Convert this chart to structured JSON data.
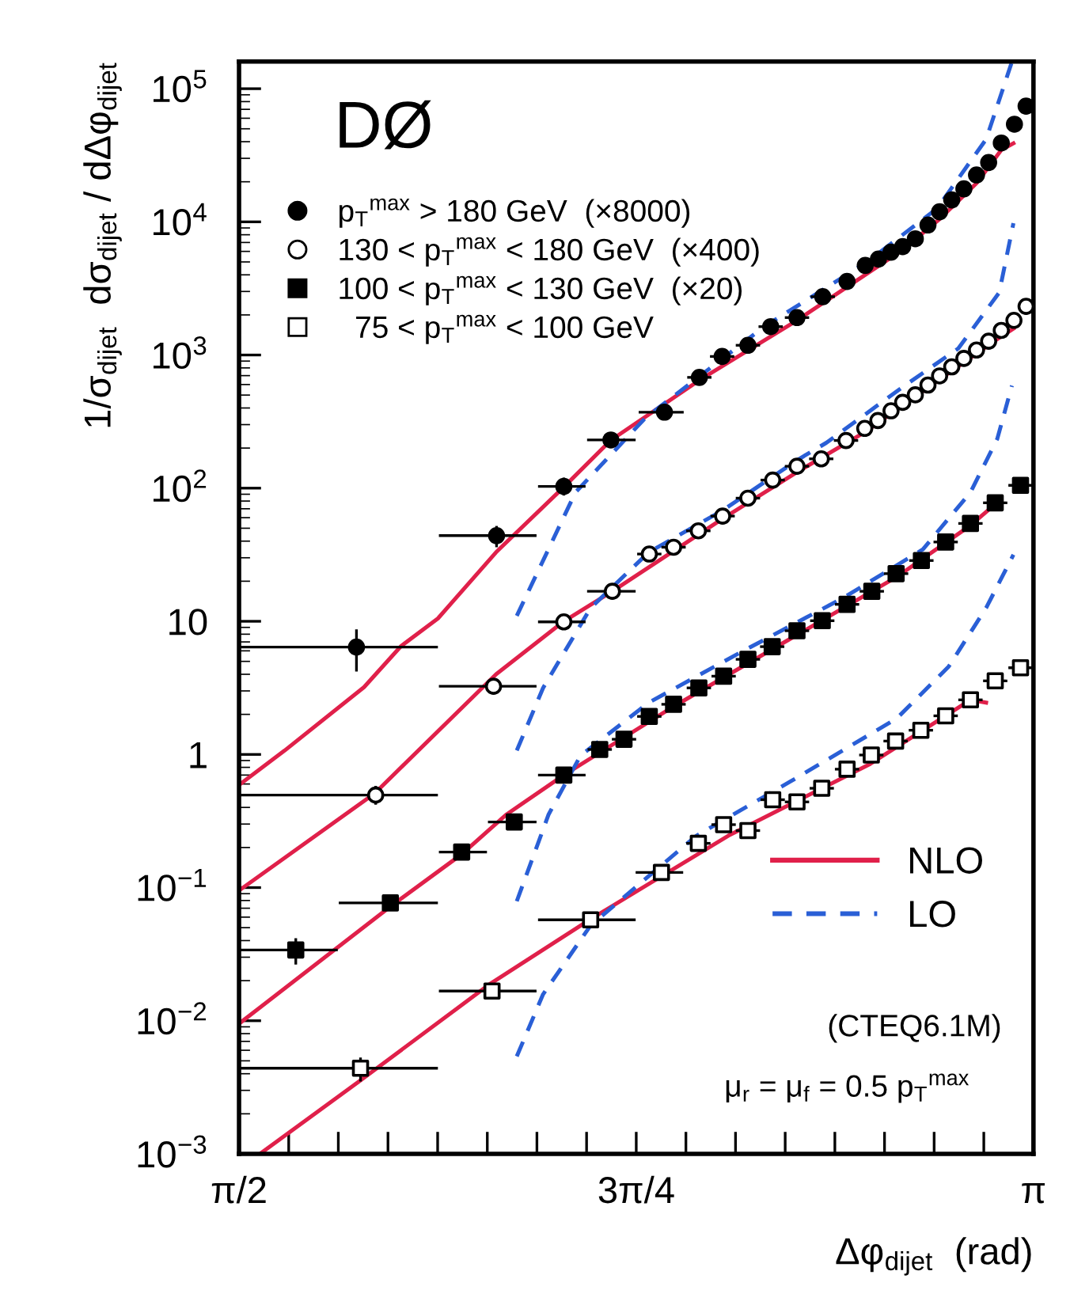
{
  "chart_data": {
    "type": "scatter",
    "xlabel": "Δφ$_{dijet}$  (rad)",
    "ylabel": "1/σ$_{dijet}$  dσ$_{dijet}$ / dΔφ$_{dijet}$",
    "log": "y",
    "grid": false,
    "legend": "top left",
    "xlim": [
      1.5708,
      3.1416
    ],
    "ylim": [
      0.001,
      160000
    ],
    "xticks": [
      {
        "value": 1.5708,
        "label": "π/2"
      },
      {
        "value": 1.669,
        "label": null
      },
      {
        "value": 1.7671,
        "label": null
      },
      {
        "value": 1.8653,
        "label": null
      },
      {
        "value": 1.9635,
        "label": null
      },
      {
        "value": 2.0617,
        "label": null
      },
      {
        "value": 2.1598,
        "label": null
      },
      {
        "value": 2.258,
        "label": null
      },
      {
        "value": 2.3562,
        "label": "3π/4"
      },
      {
        "value": 2.4544,
        "label": null
      },
      {
        "value": 2.5525,
        "label": null
      },
      {
        "value": 2.6507,
        "label": null
      },
      {
        "value": 2.7489,
        "label": null
      },
      {
        "value": 2.8471,
        "label": null
      },
      {
        "value": 2.9452,
        "label": null
      },
      {
        "value": 3.0434,
        "label": null
      },
      {
        "value": 3.1416,
        "label": "π"
      }
    ],
    "yticks": [
      {
        "value": 0.001,
        "label": "10$^{−3}$"
      },
      {
        "value": 0.01,
        "label": "10$^{−2}$"
      },
      {
        "value": 0.1,
        "label": "10$^{−1}$"
      },
      1,
      10,
      {
        "value": 100,
        "label": "10$^{2}$"
      },
      {
        "value": 1000,
        "label": "10$^{3}$"
      },
      {
        "value": 10000,
        "label": "10$^{4}$"
      },
      {
        "value": 100000,
        "label": "10$^{5}$"
      }
    ],
    "annotations": [
      "DØ",
      "(CTEQ6.1M)",
      "μ$_{r}$ = μ$_{f}$ = 0.5 p$_{T}$$^{max}$"
    ],
    "series": [
      {
        "name": "p$_{T}$$^{max}$ > 180 GeV  (×8000)",
        "marker": "circle",
        "color": "#000000",
        "x": [
          1.803,
          2.08,
          2.213,
          2.306,
          2.412,
          2.481,
          2.526,
          2.577,
          2.622,
          2.674,
          2.725,
          2.773,
          2.809,
          2.835,
          2.86,
          2.883,
          2.908,
          2.933,
          2.956,
          2.98,
          3.004,
          3.029,
          3.053,
          3.078,
          3.104,
          3.127
        ],
        "values": [
          6.4,
          44,
          103,
          230,
          372,
          679,
          975,
          1183,
          1633,
          1910,
          2740,
          3570,
          4710,
          5250,
          5920,
          6520,
          7460,
          9470,
          11900,
          14600,
          17700,
          22500,
          27900,
          39100,
          54100,
          74000
        ],
        "xerrors": [
          [
            1.571,
            1.964
          ],
          [
            1.966,
            2.159
          ],
          [
            2.162,
            2.256
          ],
          [
            2.259,
            2.355
          ],
          [
            2.361,
            2.45
          ],
          0.024,
          0.024,
          0.024,
          0.024,
          0.024,
          0.024,
          0.012,
          0.012,
          0.012,
          0.012,
          0.012,
          0.012,
          0.012,
          0.012,
          0.012,
          0.012,
          0.012,
          0.012,
          0.012,
          0.012,
          0.012
        ],
        "errors": [
          [
            4.2,
            8.7
          ],
          [
            36,
            52
          ],
          [
            88,
            120
          ],
          null,
          null,
          null,
          null,
          null,
          null,
          null,
          null,
          null,
          null,
          null,
          null,
          null,
          null,
          null,
          null,
          null,
          null,
          null,
          null,
          null,
          null,
          null
        ]
      },
      {
        "name": "130 < p$_{T}$$^{max}$ < 180 GeV  (×400)",
        "marker": "circle",
        "color": "#ffffff",
        "x": [
          1.841,
          2.074,
          2.213,
          2.309,
          2.382,
          2.43,
          2.479,
          2.527,
          2.577,
          2.626,
          2.674,
          2.722,
          2.771,
          2.808,
          2.834,
          2.86,
          2.883,
          2.908,
          2.933,
          2.956,
          2.98,
          3.004,
          3.029,
          3.053,
          3.078,
          3.103,
          3.127
        ],
        "values": [
          0.495,
          3.25,
          9.9,
          16.8,
          32,
          36,
          47.8,
          61.7,
          84.1,
          115,
          146,
          166,
          228,
          281,
          322,
          381,
          441,
          502,
          595,
          697,
          815,
          942,
          1090,
          1270,
          1530,
          1820,
          2320
        ],
        "xerrors": [
          [
            1.571,
            1.964
          ],
          [
            1.966,
            2.159
          ],
          [
            2.162,
            2.256
          ],
          [
            2.259,
            2.355
          ],
          0.024,
          0.024,
          0.024,
          0.024,
          0.024,
          0.024,
          0.024,
          0.024,
          0.024,
          0.012,
          0.012,
          0.012,
          0.012,
          0.012,
          0.012,
          0.012,
          0.012,
          0.012,
          0.012,
          0.012,
          0.012,
          0.012,
          0.012
        ],
        "errors": [
          [
            0.42,
            0.58
          ],
          null,
          null,
          null,
          null,
          null,
          null,
          null,
          null,
          null,
          null,
          null,
          null,
          null,
          null,
          null,
          null,
          null,
          null,
          null,
          null,
          null,
          null,
          null,
          null,
          null,
          null
        ]
      },
      {
        "name": "100 < p$_{T}$$^{max}$ < 130 GeV  (×20)",
        "marker": "square",
        "color": "#000000",
        "x": [
          1.683,
          1.87,
          2.011,
          2.115,
          2.213,
          2.284,
          2.332,
          2.382,
          2.43,
          2.48,
          2.529,
          2.577,
          2.625,
          2.674,
          2.724,
          2.773,
          2.822,
          2.87,
          2.92,
          2.968,
          3.017,
          3.066,
          3.116
        ],
        "values": [
          0.034,
          0.0767,
          0.185,
          0.311,
          0.7,
          1.09,
          1.3,
          1.93,
          2.38,
          3.16,
          3.87,
          5.18,
          6.45,
          8.49,
          10.1,
          13.4,
          16.8,
          22.8,
          28.6,
          39.4,
          54.3,
          77.6,
          105
        ],
        "xerrors": [
          [
            1.571,
            1.766
          ],
          [
            1.768,
            1.964
          ],
          [
            1.966,
            2.061
          ],
          [
            2.063,
            2.159
          ],
          [
            2.162,
            2.256
          ],
          0.024,
          0.024,
          0.024,
          0.024,
          0.024,
          0.024,
          0.024,
          0.024,
          0.024,
          0.024,
          0.024,
          0.024,
          0.024,
          0.024,
          0.024,
          0.024,
          0.024,
          0.024
        ],
        "errors": [
          [
            0.0264,
            0.0416
          ],
          null,
          null,
          null,
          null,
          null,
          null,
          null,
          null,
          null,
          null,
          null,
          null,
          null,
          null,
          null,
          null,
          null,
          null,
          null,
          null,
          null,
          null
        ]
      },
      {
        "name": "  75 < p$_{T}$$^{max}$ < 100 GeV",
        "marker": "square",
        "color": "#ffffff",
        "x": [
          1.811,
          2.071,
          2.266,
          2.406,
          2.479,
          2.529,
          2.577,
          2.626,
          2.674,
          2.723,
          2.773,
          2.821,
          2.869,
          2.919,
          2.968,
          3.017,
          3.066,
          3.116
        ],
        "values": [
          0.0044,
          0.0167,
          0.0573,
          0.13,
          0.215,
          0.297,
          0.268,
          0.457,
          0.44,
          0.557,
          0.775,
          0.99,
          1.26,
          1.52,
          1.95,
          2.57,
          3.57,
          4.48
        ],
        "xerrors": [
          [
            1.571,
            1.964
          ],
          [
            1.966,
            2.159
          ],
          [
            2.162,
            2.355
          ],
          [
            2.355,
            2.449
          ],
          0.024,
          0.024,
          0.024,
          0.024,
          0.024,
          0.024,
          0.024,
          0.024,
          0.024,
          0.024,
          0.024,
          0.024,
          0.024,
          0.024
        ],
        "errors": [
          [
            0.0035,
            0.0053
          ],
          [
            0.015,
            0.0185
          ],
          null,
          null,
          null,
          null,
          null,
          null,
          null,
          null,
          null,
          null,
          null,
          null,
          null,
          null,
          null,
          null
        ]
      },
      {
        "name": "NLO",
        "type": "line",
        "line_style": "solid",
        "color": "#e0204a",
        "x": [
          1.5708,
          1.661,
          1.818,
          1.891,
          1.964,
          2.079,
          2.213,
          2.306,
          2.481,
          2.674,
          2.773,
          2.883,
          2.956,
          3.029,
          3.078,
          3.102
        ],
        "values": [
          0.59,
          1.07,
          3.2,
          6.5,
          10.5,
          33,
          102,
          229,
          646,
          1820,
          3240,
          6170,
          10500,
          19500,
          34700,
          38900
        ]
      },
      {
        "type": "line",
        "line_style": "solid",
        "color": "#e0204a",
        "x": [
          1.5708,
          1.839,
          2.079,
          2.213,
          2.309,
          2.527,
          2.674,
          2.808,
          2.883,
          2.98,
          3.078,
          3.102
        ],
        "values": [
          0.095,
          0.51,
          4.0,
          10,
          16.8,
          59,
          132,
          263,
          417,
          759,
          1380,
          1580
        ]
      },
      {
        "type": "line",
        "line_style": "solid",
        "color": "#e0204a",
        "x": [
          1.5708,
          1.87,
          2.011,
          2.1,
          2.213,
          2.43,
          2.674,
          2.87,
          3.017,
          3.066
        ],
        "values": [
          0.0095,
          0.072,
          0.178,
          0.355,
          0.7,
          2.29,
          7.9,
          21.4,
          52.5,
          75.9
        ]
      },
      {
        "type": "line",
        "line_style": "solid",
        "color": "#e0204a",
        "x": [
          1.612,
          1.808,
          2.068,
          2.266,
          2.538,
          2.819,
          3.017,
          3.048
        ],
        "values": [
          0.001,
          0.0035,
          0.019,
          0.058,
          0.245,
          0.85,
          2.57,
          2.45
        ]
      },
      {
        "name": "LO",
        "type": "line",
        "line_style": "dashed",
        "color": "#2a5fd6",
        "x": [
          2.12,
          2.183,
          2.236,
          2.375,
          2.608,
          2.813,
          2.951,
          3.048,
          3.098
        ],
        "values": [
          11,
          35,
          93,
          339,
          1620,
          5010,
          12600,
          41700,
          155000
        ]
      },
      {
        "type": "line",
        "line_style": "dashed",
        "color": "#2a5fd6",
        "x": [
          2.12,
          2.172,
          2.266,
          2.381,
          2.527,
          2.674,
          2.732,
          2.883,
          2.993,
          3.074,
          3.102
        ],
        "values": [
          1.07,
          3.16,
          12.6,
          33,
          68,
          162,
          219,
          575,
          1120,
          2950,
          9770
        ]
      },
      {
        "type": "line",
        "line_style": "dashed",
        "color": "#2a5fd6",
        "x": [
          2.12,
          2.183,
          2.246,
          2.381,
          2.559,
          2.767,
          2.923,
          3.017,
          3.07,
          3.099
        ],
        "values": [
          0.079,
          0.355,
          0.98,
          2.45,
          5.75,
          15.1,
          34.7,
          93,
          234,
          589
        ]
      },
      {
        "type": "line",
        "line_style": "dashed",
        "color": "#2a5fd6",
        "x": [
          2.12,
          2.172,
          2.266,
          2.475,
          2.659,
          2.871,
          2.974,
          3.048,
          3.102
        ],
        "values": [
          0.0054,
          0.0158,
          0.052,
          0.245,
          0.62,
          1.86,
          4.57,
          12.6,
          31.6
        ]
      }
    ]
  }
}
